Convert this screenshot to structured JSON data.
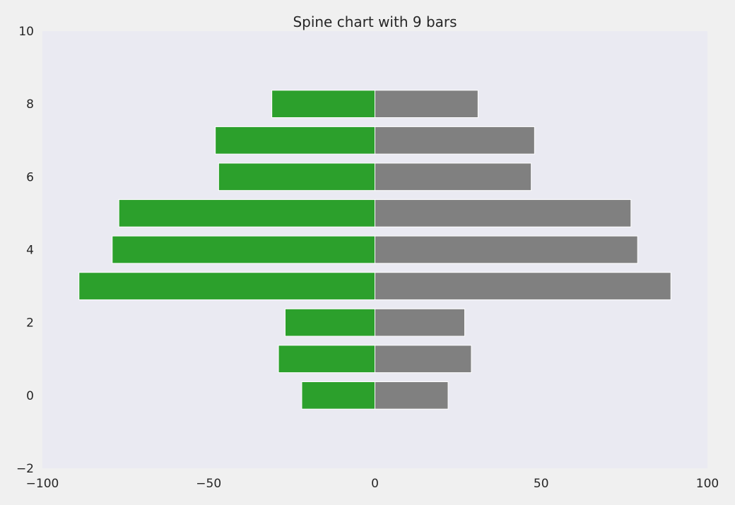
{
  "chart_data": {
    "type": "bar",
    "orientation": "horizontal",
    "layout": "spine",
    "title": "Spine chart with 9 bars",
    "xlabel": "",
    "ylabel": "",
    "xlim": [
      -100,
      100
    ],
    "ylim": [
      -2,
      10
    ],
    "x_ticks": [
      -100,
      -50,
      0,
      50,
      100
    ],
    "x_tick_labels": [
      "−100",
      "−50",
      "0",
      "50",
      "100"
    ],
    "y_ticks": [
      -2,
      0,
      2,
      4,
      6,
      8,
      10
    ],
    "y_tick_labels": [
      "−2",
      "0",
      "2",
      "4",
      "6",
      "8",
      "10"
    ],
    "grid": false,
    "categories": [
      0,
      1,
      2,
      3,
      4,
      5,
      6,
      7,
      8
    ],
    "series": [
      {
        "color": "#2ca02c",
        "values": [
          -22,
          -29,
          -27,
          -89,
          -79,
          -77,
          -47,
          -48,
          -31
        ]
      },
      {
        "color": "#808080",
        "values": [
          22,
          29,
          27,
          89,
          79,
          77,
          47,
          48,
          31
        ]
      }
    ],
    "background_color": "#eaeaf2",
    "figure_color": "#f0f0f0"
  }
}
